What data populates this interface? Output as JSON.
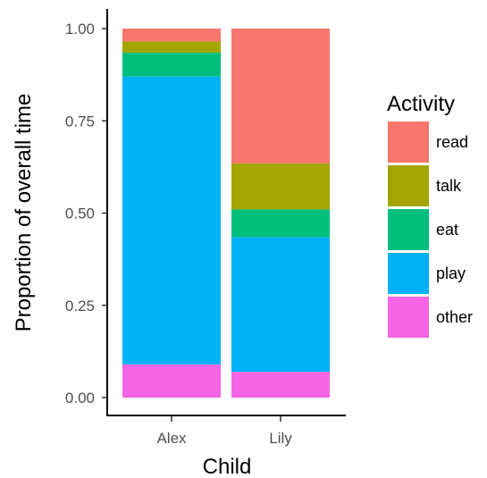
{
  "chart_data": {
    "type": "bar",
    "stacked": true,
    "normalized": true,
    "categories": [
      "Alex",
      "Lily"
    ],
    "series": [
      {
        "name": "other",
        "color": "#F564E3",
        "values": [
          0.09,
          0.07
        ]
      },
      {
        "name": "play",
        "color": "#00B1F6",
        "values": [
          0.78,
          0.365
        ]
      },
      {
        "name": "eat",
        "color": "#00BF7D",
        "values": [
          0.065,
          0.075
        ]
      },
      {
        "name": "talk",
        "color": "#A3A500",
        "values": [
          0.03,
          0.125
        ]
      },
      {
        "name": "read",
        "color": "#F8766D",
        "values": [
          0.035,
          0.365
        ]
      }
    ],
    "xlabel": "Child",
    "ylabel": "Proportion of overall time",
    "ylim": [
      0,
      1
    ],
    "yticks": [
      "0.00",
      "0.25",
      "0.50",
      "0.75",
      "1.00"
    ],
    "legend": {
      "title": "Activity",
      "position": "right",
      "order": [
        "read",
        "talk",
        "eat",
        "play",
        "other"
      ]
    },
    "grid": false
  }
}
